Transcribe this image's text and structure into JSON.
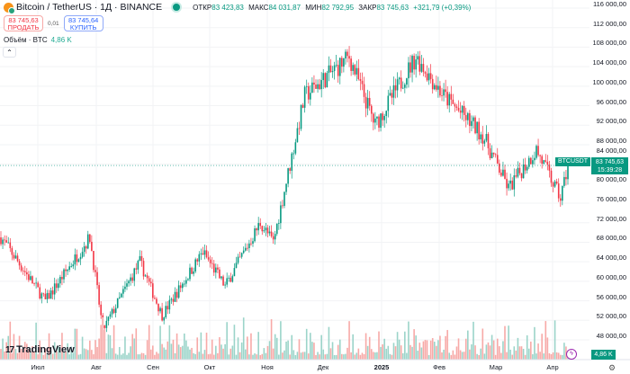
{
  "header": {
    "symbol": "Bitcoin / TetherUS · 1Д · BINANCE",
    "open_label": "ОТКР",
    "open": "83 423,83",
    "high_label": "МАКС",
    "high": "84 031,87",
    "low_label": "МИН",
    "low": "82 792,95",
    "close_label": "ЗАКР",
    "close": "83 745,63",
    "change": "+321,79 (+0,39%)"
  },
  "trade": {
    "sell_price": "83 745,63",
    "sell_label": "ПРОДАТЬ",
    "spread": "0,01",
    "buy_price": "83 745,64",
    "buy_label": "КУПИТЬ"
  },
  "volume": {
    "label": "Объём · BTC",
    "value": "4,86 K"
  },
  "price_axis": [
    "116 000,00",
    "112 000,00",
    "108 000,00",
    "104 000,00",
    "100 000,00",
    "96 000,00",
    "92 000,00",
    "88 000,00",
    "84 000,00",
    "80 000,00",
    "76 000,00",
    "72 000,00",
    "68 000,00",
    "64 000,00",
    "60 000,00",
    "56 000,00",
    "52 000,00",
    "48 000,00"
  ],
  "time_axis": [
    {
      "label": "Июл",
      "bold": false
    },
    {
      "label": "Авг",
      "bold": false
    },
    {
      "label": "Сен",
      "bold": false
    },
    {
      "label": "Окт",
      "bold": false
    },
    {
      "label": "Ноя",
      "bold": false
    },
    {
      "label": "Дек",
      "bold": false
    },
    {
      "label": "2025",
      "bold": true
    },
    {
      "label": "Фев",
      "bold": false
    },
    {
      "label": "Мар",
      "bold": false
    },
    {
      "label": "Апр",
      "bold": false
    }
  ],
  "last": {
    "symbol": "BTCUSDT",
    "price": "83 745,63",
    "countdown": "15:39:28",
    "volume": "4,86 K"
  },
  "logo": "TradingView",
  "colors": {
    "up": "#089981",
    "down": "#f23645"
  },
  "price_path": [
    [
      0,
      69000
    ],
    [
      24,
      56000
    ],
    [
      48,
      69000
    ],
    [
      55,
      50000
    ],
    [
      75,
      64000
    ],
    [
      87,
      53000
    ],
    [
      109,
      66000
    ],
    [
      121,
      59000
    ],
    [
      140,
      72000
    ],
    [
      147,
      68000
    ],
    [
      164,
      98000
    ],
    [
      188,
      106000
    ],
    [
      202,
      92000
    ],
    [
      224,
      106000
    ],
    [
      239,
      98000
    ],
    [
      260,
      90000
    ],
    [
      274,
      79000
    ],
    [
      289,
      87000
    ],
    [
      302,
      77000
    ],
    [
      306,
      83745
    ]
  ]
}
